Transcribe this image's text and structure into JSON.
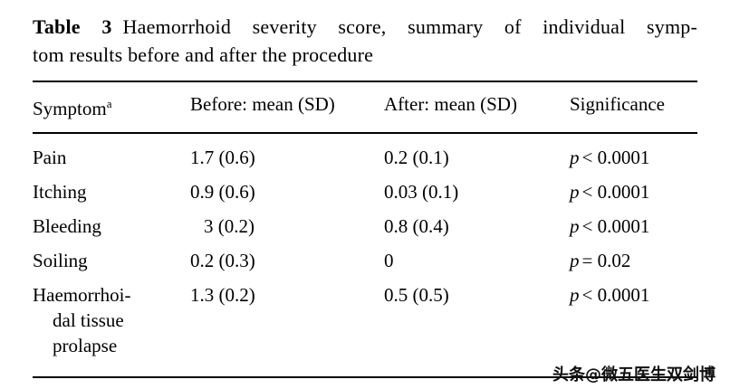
{
  "caption": {
    "label": "Table 3",
    "line1": "Haemorrhoid severity score, summary of individual symp-",
    "line2": "tom results before and after the procedure"
  },
  "table": {
    "header": {
      "symptom": "Symptom",
      "symptom_superscript": "a",
      "before": "Before: mean (SD)",
      "after": "After: mean (SD)",
      "significance": "Significance"
    },
    "rows": [
      {
        "symptom": "Pain",
        "before": "1.7 (0.6)",
        "after": "0.2 (0.1)",
        "sig_var": "p",
        "sig_value": "< 0.0001"
      },
      {
        "symptom": "Itching",
        "before": "0.9 (0.6)",
        "after": "0.03 (0.1)",
        "sig_var": "p",
        "sig_value": "< 0.0001"
      },
      {
        "symptom": "Bleeding",
        "before": "3 (0.2)",
        "after": "0.8 (0.4)",
        "sig_var": "p",
        "sig_value": "< 0.0001"
      },
      {
        "symptom": "Soiling",
        "before": "0.2 (0.3)",
        "after": "0",
        "sig_var": "p",
        "sig_value": "= 0.02"
      },
      {
        "symptom": "Haemorrhoi-\ndal tissue\nprolapse",
        "before": "1.3 (0.2)",
        "after": "0.5 (0.5)",
        "sig_var": "p",
        "sig_value": "< 0.0001"
      }
    ]
  },
  "watermark": "头条@微五医生双剑博"
}
